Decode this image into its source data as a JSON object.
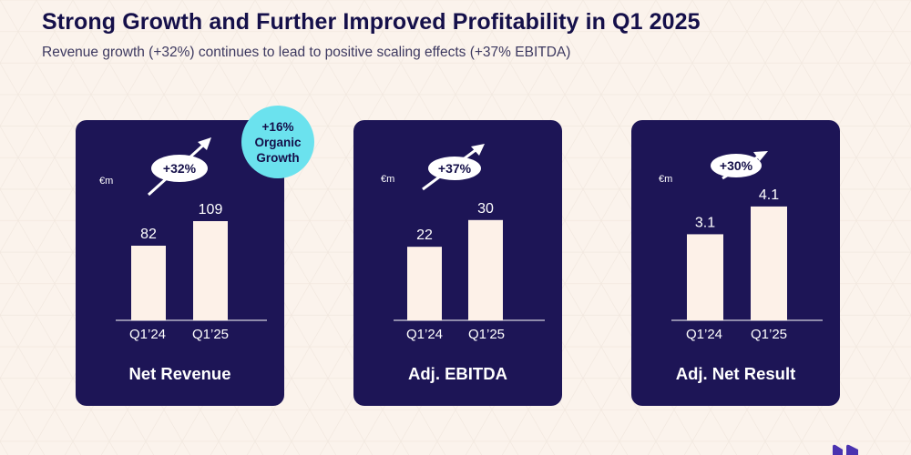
{
  "header": {
    "title": "Strong Growth and Further Improved Profitability in Q1 2025",
    "subtitle": "Revenue growth (+32%) continues to lead to positive scaling effects (+37% EBITDA)"
  },
  "badge": {
    "line1": "+16%",
    "line2": "Organic",
    "line3": "Growth"
  },
  "chart_data": [
    {
      "type": "bar",
      "title": "Net Revenue",
      "unit": "€m",
      "growth": "+32%",
      "categories": [
        "Q1’24",
        "Q1’25"
      ],
      "values": [
        82,
        109
      ],
      "labels": [
        "82",
        "109"
      ],
      "ylim": [
        0,
        180
      ]
    },
    {
      "type": "bar",
      "title": "Adj. EBITDA",
      "unit": "€m",
      "growth": "+37%",
      "categories": [
        "Q1’24",
        "Q1’25"
      ],
      "values": [
        22,
        30
      ],
      "labels": [
        "22",
        "30"
      ],
      "ylim": [
        0,
        49
      ]
    },
    {
      "type": "bar",
      "title": "Adj. Net Result",
      "unit": "€m",
      "growth": "+30%",
      "categories": [
        "Q1’24",
        "Q1’25"
      ],
      "values": [
        3.1,
        4.1
      ],
      "labels": [
        "3.1",
        "4.1"
      ],
      "ylim": [
        0,
        5.9
      ]
    }
  ]
}
